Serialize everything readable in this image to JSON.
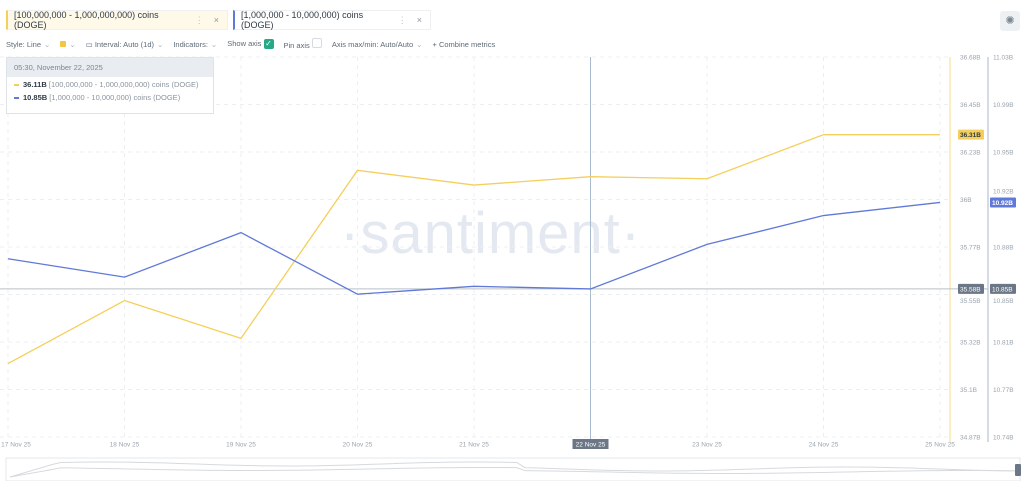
{
  "tabs": [
    {
      "label": "[100,000,000 - 1,000,000,000) coins (DOGE)",
      "color": "#f4cf5c"
    },
    {
      "label": "[1,000,000 - 10,000,000) coins (DOGE)",
      "color": "#6079d8"
    }
  ],
  "toolbar": {
    "style": "Style: Line",
    "interval": "Interval: Auto (1d)",
    "indicators": "Indicators:",
    "show_axis": "Show axis",
    "show_axis_checked": true,
    "pin_axis": "Pin axis",
    "pin_axis_checked": false,
    "axis_maxmin": "Axis max/min: Auto/Auto",
    "combine": "Combine metrics",
    "line_color": "#f4c542"
  },
  "tooltip": {
    "date": "05:30, November 22, 2025",
    "rows": [
      {
        "value": "36.11B",
        "label": "[100,000,000 - 1,000,000,000) coins (DOGE)",
        "color": "#f4cf5c"
      },
      {
        "value": "10.85B",
        "label": "[1,000,000 - 10,000,000) coins (DOGE)",
        "color": "#6079d8"
      }
    ]
  },
  "watermark": "·santiment·",
  "settings_icon": "sun-icon",
  "chart_data": {
    "type": "line",
    "categories": [
      "17 Nov 25",
      "18 Nov 25",
      "19 Nov 25",
      "20 Nov 25",
      "21 Nov 25",
      "22 Nov 25",
      "23 Nov 25",
      "24 Nov 25",
      "25 Nov 25"
    ],
    "series": [
      {
        "name": "[100,000,000 - 1,000,000,000) coins (DOGE)",
        "axis": "left",
        "color": "#f4cf5c",
        "values": [
          35.22,
          35.52,
          35.34,
          36.14,
          36.07,
          36.11,
          36.1,
          36.31,
          36.31
        ]
      },
      {
        "name": "[1,000,000 - 10,000,000) coins (DOGE)",
        "axis": "right",
        "color": "#6079d8",
        "values": [
          10.876,
          10.862,
          10.896,
          10.849,
          10.855,
          10.853,
          10.887,
          10.909,
          10.919
        ]
      }
    ],
    "left_axis": {
      "range": [
        34.87,
        36.68
      ],
      "ticks": [
        "36.68B",
        "36.45B",
        "36.23B",
        "36B",
        "35.77B",
        "35.55B",
        "35.32B",
        "35.1B",
        "34.87B"
      ]
    },
    "right_axis": {
      "range": [
        10.74,
        11.03
      ],
      "ticks": [
        "11.03B",
        "10.99B",
        "10.95B",
        "10.92B",
        "10.88B",
        "10.85B",
        "10.81B",
        "10.77B",
        "10.74B"
      ]
    },
    "last_value_labels": [
      "36.31B",
      "10.92B"
    ],
    "crosshair": {
      "x": "22 Nov 25",
      "left_label": "35.58B",
      "right_label": "10.85B"
    },
    "grid": true
  }
}
